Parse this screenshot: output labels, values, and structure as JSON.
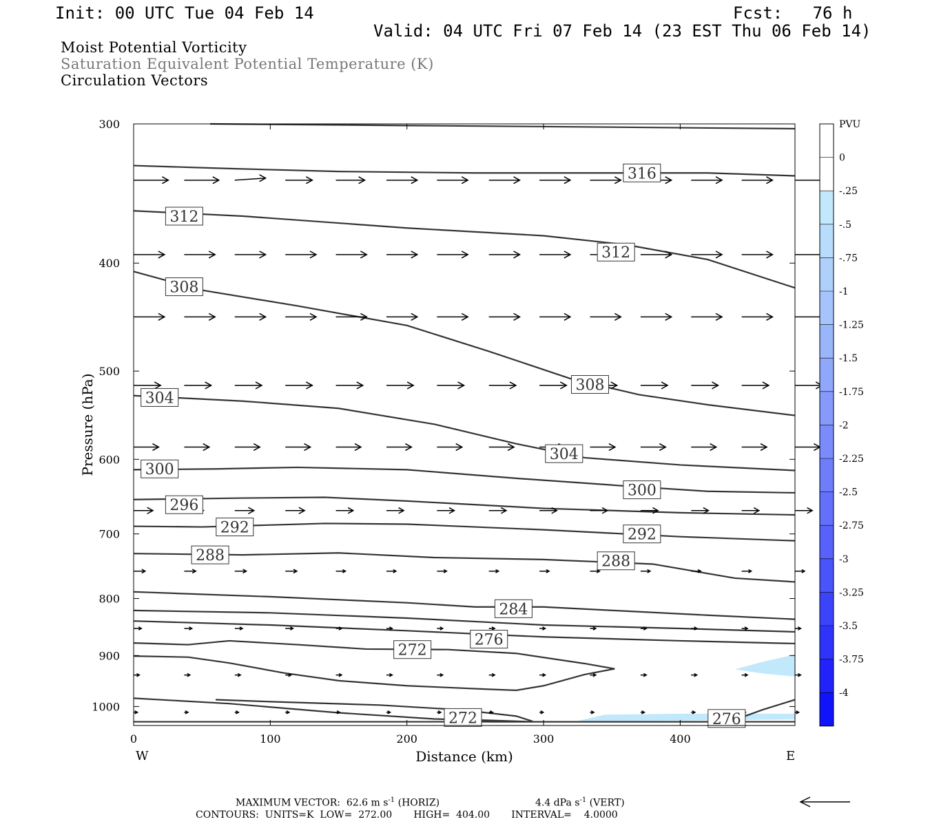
{
  "header": {
    "init": "Init: 00 UTC Tue 04 Feb 14",
    "fcst": "Fcst:   76 h",
    "valid": "Valid: 04 UTC Fri 07 Feb 14 (23 EST Thu 06 Feb 14)"
  },
  "fields": {
    "line1": "Moist Potential Vorticity",
    "line2": "Saturation Equivalent Potential Temperature (K)",
    "line3": "Circulation Vectors"
  },
  "colorbar": {
    "title": "PVU",
    "labels": [
      "0",
      "-.25",
      "-.5",
      "-.75",
      "-1",
      "-1.25",
      "-1.5",
      "-1.75",
      "-2",
      "-2.25",
      "-2.5",
      "-2.75",
      "-3",
      "-3.25",
      "-3.5",
      "-3.75",
      "-4"
    ],
    "colors": [
      "#ffffff",
      "#ffffff",
      "#c2e8fb",
      "#b8dcfb",
      "#aed0fb",
      "#a4c4fb",
      "#9ab6fb",
      "#90a8fb",
      "#869afb",
      "#7a8cfb",
      "#6e7efb",
      "#6270fb",
      "#5662fb",
      "#4a54fb",
      "#3c44fb",
      "#2e34fb",
      "#2024fb",
      "#1014fb"
    ]
  },
  "footer": {
    "max_vector_text": "MAXIMUM VECTOR:  62.6 m s",
    "horiz_text": "(HORIZ)",
    "vert_value_text": "4.4 dPa s",
    "vert_text": "(VERT)",
    "exponent": "-1",
    "contours_text": "CONTOURS:  UNITS=K  LOW=  272.00       HIGH=  404.00       INTERVAL=    4.0000"
  },
  "chart_data": {
    "type": "cross-section",
    "xlabel": "Distance (km)",
    "ylabel": "Pressure (hPa)",
    "xlim": [
      0,
      484
    ],
    "ylim": [
      1040,
      300
    ],
    "y_log": true,
    "xticks": [
      0,
      100,
      200,
      300,
      400
    ],
    "yticks": [
      300,
      400,
      500,
      600,
      700,
      800,
      900,
      1000
    ],
    "x_end_labels": {
      "left": "W",
      "right": "E"
    },
    "contour_color": "#333333",
    "contours": [
      {
        "label": "",
        "points": [
          [
            56,
            300
          ],
          [
            200,
            301
          ],
          [
            350,
            302
          ],
          [
            484,
            303
          ]
        ]
      },
      {
        "label": "316",
        "label_at": [
          372,
          332
        ],
        "points": [
          [
            0,
            327
          ],
          [
            70,
            329
          ],
          [
            150,
            331
          ],
          [
            250,
            332
          ],
          [
            350,
            332
          ],
          [
            420,
            332
          ],
          [
            484,
            334
          ]
        ]
      },
      {
        "label": "312",
        "label_at": [
          37,
          363
        ],
        "points": [
          [
            0,
            359
          ],
          [
            80,
            363
          ],
          [
            200,
            372
          ],
          [
            300,
            378
          ],
          [
            360,
            385
          ],
          [
            420,
            397
          ],
          [
            484,
            421
          ]
        ]
      },
      {
        "label": "312",
        "label_at": [
          353,
          391
        ],
        "points": []
      },
      {
        "label": "308",
        "label_at": [
          37,
          420
        ],
        "points": [
          [
            0,
            407
          ],
          [
            50,
            423
          ],
          [
            120,
            437
          ],
          [
            200,
            455
          ],
          [
            260,
            480
          ],
          [
            320,
            508
          ],
          [
            370,
            525
          ],
          [
            420,
            536
          ],
          [
            484,
            548
          ]
        ]
      },
      {
        "label": "308",
        "label_at": [
          334,
          514
        ],
        "points": []
      },
      {
        "label": "304",
        "label_at": [
          19,
          528
        ],
        "points": [
          [
            0,
            526
          ],
          [
            80,
            532
          ],
          [
            150,
            540
          ],
          [
            220,
            558
          ],
          [
            280,
            581
          ],
          [
            330,
            598
          ],
          [
            400,
            607
          ],
          [
            484,
            614
          ]
        ]
      },
      {
        "label": "304",
        "label_at": [
          315,
          593
        ],
        "points": []
      },
      {
        "label": "300",
        "label_at": [
          19,
          612
        ],
        "points": [
          [
            0,
            613
          ],
          [
            60,
            612
          ],
          [
            120,
            610
          ],
          [
            200,
            613
          ],
          [
            280,
            624
          ],
          [
            360,
            634
          ],
          [
            420,
            641
          ],
          [
            484,
            643
          ]
        ]
      },
      {
        "label": "300",
        "label_at": [
          372,
          639
        ],
        "points": []
      },
      {
        "label": "296",
        "label_at": [
          37,
          659
        ],
        "points": [
          [
            0,
            652
          ],
          [
            80,
            650
          ],
          [
            140,
            649
          ],
          [
            200,
            654
          ],
          [
            300,
            664
          ],
          [
            400,
            670
          ],
          [
            484,
            673
          ]
        ]
      },
      {
        "label": "292",
        "label_at": [
          74,
          690
        ],
        "points": [
          [
            0,
            689
          ],
          [
            50,
            690
          ],
          [
            140,
            685
          ],
          [
            200,
            686
          ],
          [
            300,
            694
          ],
          [
            400,
            704
          ],
          [
            484,
            710
          ]
        ]
      },
      {
        "label": "292",
        "label_at": [
          372,
          700
        ],
        "points": []
      },
      {
        "label": "288",
        "label_at": [
          56,
          731
        ],
        "points": [
          [
            0,
            729
          ],
          [
            80,
            731
          ],
          [
            150,
            728
          ],
          [
            220,
            735
          ],
          [
            300,
            738
          ],
          [
            380,
            745
          ],
          [
            440,
            767
          ],
          [
            484,
            773
          ]
        ]
      },
      {
        "label": "288",
        "label_at": [
          353,
          740
        ],
        "points": []
      },
      {
        "label": "284",
        "label_at": [
          278,
          817
        ],
        "points": [
          [
            0,
            789
          ],
          [
            100,
            797
          ],
          [
            200,
            807
          ],
          [
            250,
            814
          ],
          [
            300,
            814
          ],
          [
            360,
            821
          ],
          [
            420,
            828
          ],
          [
            484,
            835
          ]
        ]
      },
      {
        "label": "",
        "points": [
          [
            0,
            820
          ],
          [
            100,
            824
          ],
          [
            200,
            833
          ],
          [
            300,
            845
          ],
          [
            400,
            851
          ],
          [
            484,
            857
          ]
        ]
      },
      {
        "label": "276",
        "label_at": [
          260,
          870
        ],
        "points": [
          [
            0,
            838
          ],
          [
            100,
            845
          ],
          [
            200,
            855
          ],
          [
            300,
            866
          ],
          [
            400,
            873
          ],
          [
            484,
            878
          ]
        ]
      },
      {
        "label": "272",
        "label_at": [
          204,
          889
        ],
        "points": [
          [
            0,
            877
          ],
          [
            40,
            880
          ],
          [
            70,
            873
          ],
          [
            120,
            880
          ],
          [
            170,
            888
          ],
          [
            230,
            889
          ],
          [
            280,
            896
          ],
          [
            330,
            915
          ],
          [
            352,
            925
          ],
          [
            330,
            936
          ],
          [
            300,
            958
          ],
          [
            280,
            967
          ],
          [
            260,
            965
          ],
          [
            200,
            958
          ],
          [
            150,
            948
          ],
          [
            110,
            933
          ],
          [
            70,
            914
          ],
          [
            40,
            903
          ],
          [
            0,
            901
          ]
        ]
      },
      {
        "label": "272",
        "label_at": [
          241,
          1023
        ],
        "points": [
          [
            0,
            983
          ],
          [
            70,
            994
          ],
          [
            150,
            1013
          ],
          [
            220,
            1026
          ],
          [
            260,
            1029
          ],
          [
            292,
            1032
          ]
        ]
      },
      {
        "label": "",
        "points": [
          [
            60,
            986
          ],
          [
            100,
            990
          ],
          [
            180,
            997
          ],
          [
            240,
            1007
          ],
          [
            280,
            1020
          ],
          [
            292,
            1031
          ]
        ]
      },
      {
        "label": "276",
        "label_at": [
          434,
          1025
        ],
        "points": [
          [
            260,
            1032
          ],
          [
            350,
            1032
          ],
          [
            420,
            1032
          ],
          [
            440,
            1028
          ],
          [
            460,
            1007
          ],
          [
            484,
            986
          ]
        ]
      },
      {
        "label": "",
        "points": [
          [
            0,
            1032
          ],
          [
            484,
            1032
          ]
        ]
      }
    ],
    "pv_shading": [
      {
        "value": "-.25 to -.5",
        "color": "#c2e8fb",
        "points": [
          [
            440,
            926
          ],
          [
            460,
            912
          ],
          [
            484,
            898
          ],
          [
            484,
            940
          ],
          [
            460,
            934
          ],
          [
            450,
            930
          ]
        ]
      },
      {
        "value": "-.25 to -.5",
        "color": "#c2e8fb",
        "points": [
          [
            325,
            1030
          ],
          [
            345,
            1017
          ],
          [
            400,
            1015
          ],
          [
            484,
            1015
          ],
          [
            484,
            1027
          ],
          [
            420,
            1029
          ],
          [
            340,
            1031
          ]
        ]
      }
    ],
    "vector_rows": [
      {
        "p": 337,
        "x": [
          0,
          37,
          74,
          111,
          148,
          185,
          222,
          260,
          297,
          334,
          371,
          408,
          445,
          484
        ],
        "u": [
          1.8,
          1.8,
          1.6,
          1.4,
          1.5,
          1.6,
          1.6,
          1.6,
          1.6,
          1.6,
          1.6,
          1.6,
          1.6,
          1.6
        ],
        "w": [
          0,
          0,
          0.5,
          0,
          0,
          0,
          0,
          0,
          0,
          0,
          0,
          0,
          0,
          0
        ]
      },
      {
        "p": 393,
        "x": [
          0,
          37,
          74,
          111,
          148,
          185,
          222,
          260,
          297,
          334,
          371,
          408,
          445,
          484
        ],
        "u": [
          1.6,
          1.6,
          1.6,
          1.6,
          1.6,
          1.6,
          1.6,
          1.6,
          1.6,
          1.6,
          1.6,
          1.6,
          1.6,
          1.6
        ],
        "w": [
          0,
          0,
          0,
          0,
          0,
          0,
          0,
          0,
          0,
          0,
          0,
          0,
          0,
          0
        ]
      },
      {
        "p": 447,
        "x": [
          0,
          37,
          74,
          111,
          148,
          185,
          222,
          260,
          297,
          334,
          371,
          408,
          445,
          484
        ],
        "u": [
          1.6,
          1.6,
          1.6,
          1.6,
          1.6,
          1.6,
          1.6,
          1.6,
          1.6,
          1.6,
          1.6,
          1.6,
          1.6,
          1.6
        ],
        "w": [
          0,
          0,
          0,
          0,
          0,
          0,
          0,
          0,
          0,
          0,
          0,
          0,
          0,
          0
        ]
      },
      {
        "p": 515,
        "x": [
          0,
          37,
          74,
          111,
          148,
          185,
          222,
          260,
          297,
          334,
          371,
          408,
          445,
          484
        ],
        "u": [
          1.4,
          1.4,
          1.4,
          1.4,
          1.4,
          1.4,
          1.4,
          1.4,
          1.4,
          1.4,
          1.4,
          1.4,
          1.4,
          1.4
        ],
        "w": [
          0,
          0,
          0,
          0,
          0,
          0,
          0,
          0,
          0,
          0,
          0,
          0,
          0,
          0
        ]
      },
      {
        "p": 585,
        "x": [
          0,
          37,
          74,
          111,
          148,
          185,
          222,
          260,
          297,
          334,
          371,
          408,
          445,
          484
        ],
        "u": [
          1.3,
          1.3,
          1.3,
          1.3,
          1.3,
          1.3,
          1.3,
          1.3,
          1.3,
          1.3,
          1.3,
          1.3,
          1.3,
          1.3
        ],
        "w": [
          0,
          0,
          0,
          0,
          0,
          0,
          0,
          0,
          0,
          0,
          0,
          0,
          0,
          0
        ]
      },
      {
        "p": 667,
        "x": [
          0,
          37,
          74,
          111,
          148,
          185,
          222,
          260,
          297,
          334,
          371,
          408,
          445,
          484
        ],
        "u": [
          1.0,
          1.0,
          1.0,
          1.0,
          0.9,
          0.9,
          0.9,
          0.9,
          0.9,
          0.9,
          0.9,
          0.9,
          0.9,
          0.9
        ],
        "w": [
          0,
          0,
          0,
          0,
          0,
          0,
          0,
          0,
          0,
          0,
          0,
          0,
          0,
          0
        ]
      },
      {
        "p": 756,
        "x": [
          0,
          37,
          74,
          111,
          148,
          185,
          222,
          260,
          297,
          334,
          371,
          408,
          445,
          484
        ],
        "u": [
          0.6,
          0.6,
          0.6,
          0.6,
          0.5,
          0.5,
          0.5,
          0.5,
          0.5,
          0.5,
          0.5,
          0.5,
          0.5,
          0.5
        ],
        "w": [
          0,
          0,
          0,
          0,
          0,
          0,
          0,
          0,
          0,
          0,
          0,
          0,
          0,
          0
        ]
      },
      {
        "p": 851,
        "x": [
          0,
          37,
          74,
          111,
          148,
          185,
          222,
          260,
          297,
          334,
          371,
          408,
          445,
          484
        ],
        "u": [
          0.4,
          0.4,
          0.4,
          0.4,
          0.3,
          0.3,
          0.3,
          0.3,
          0.3,
          0.3,
          0.3,
          0.3,
          0.3,
          0.3
        ],
        "w": [
          0,
          0,
          0,
          0,
          0,
          0,
          0,
          0,
          0,
          0,
          0,
          0,
          0,
          0
        ]
      },
      {
        "p": 937,
        "x": [
          0,
          37,
          74,
          111,
          148,
          185,
          222,
          260,
          297,
          334,
          371,
          408,
          445,
          484
        ],
        "u": [
          0.3,
          0.3,
          0.3,
          0.3,
          0.3,
          0.3,
          0.3,
          0.3,
          0.3,
          0.3,
          0.3,
          0.3,
          0.3,
          0.3
        ],
        "w": [
          0,
          0,
          0,
          0,
          0,
          0,
          0,
          0,
          0,
          0,
          0,
          0,
          0,
          0
        ]
      },
      {
        "p": 1012,
        "x": [
          0,
          37,
          74,
          111,
          148,
          185,
          222,
          260,
          297,
          334,
          371,
          408,
          445,
          484
        ],
        "u": [
          0.2,
          0.2,
          0.2,
          0.2,
          0.2,
          0.2,
          0.2,
          0.2,
          0.2,
          0.2,
          0.2,
          0.2,
          0.2,
          0.2
        ],
        "w": [
          0,
          0,
          0,
          0,
          0,
          0,
          0,
          0,
          0,
          0,
          0,
          0,
          0,
          0
        ]
      }
    ]
  }
}
